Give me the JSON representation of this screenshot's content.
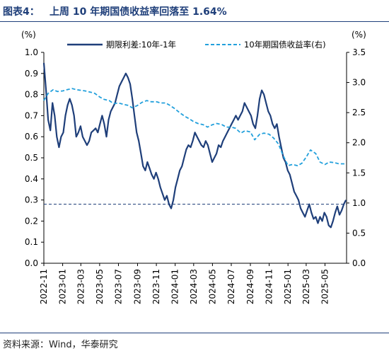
{
  "title": {
    "label": "图表4：",
    "text": "上周 10 年期国债收益率回落至 1.64%"
  },
  "source": "资料来源：Wind，华泰研究",
  "colors": {
    "spread": "#1f3f7a",
    "yield": "#22a0dc",
    "ref": "#1f3f7a",
    "accent": "#1f3f7a"
  },
  "chart_data": {
    "type": "line",
    "title": "上周 10 年期国债收益率回落至 1.64%",
    "y_left": {
      "unit": "(%)",
      "range": [
        0.0,
        1.0
      ],
      "ticks": [
        "1.0",
        "0.9",
        "0.8",
        "0.7",
        "0.6",
        "0.5",
        "0.4",
        "0.3",
        "0.2",
        "0.1",
        "0.0"
      ]
    },
    "y_right": {
      "unit": "(%)",
      "range": [
        0.0,
        3.5
      ],
      "ticks": [
        "3.5",
        "3.0",
        "2.5",
        "2.0",
        "1.5",
        "1.0",
        "0.5",
        "0.0"
      ]
    },
    "x_ticks": [
      "2022-11",
      "2023-01",
      "2023-03",
      "2023-05",
      "2023-07",
      "2023-09",
      "2023-11",
      "2024-01",
      "2024-03",
      "2024-05",
      "2024-07",
      "2024-09",
      "2024-11",
      "2025-01",
      "2025-03",
      "2025-05"
    ],
    "x_range": [
      "2022-11-01",
      "2025-07-10"
    ],
    "legend": [
      "期限利差:10年-1年",
      "10年期国债收益率(右)"
    ],
    "reference_line": {
      "axis": "left",
      "value": 0.28,
      "style": "dashed"
    },
    "series": [
      {
        "name": "期限利差:10年-1年",
        "axis": "left",
        "color": "#1f3f7a",
        "style": "solid",
        "points": [
          [
            "2022-11-01",
            0.95
          ],
          [
            "2022-11-08",
            0.82
          ],
          [
            "2022-11-15",
            0.68
          ],
          [
            "2022-11-22",
            0.63
          ],
          [
            "2022-11-29",
            0.76
          ],
          [
            "2022-12-06",
            0.7
          ],
          [
            "2022-12-13",
            0.6
          ],
          [
            "2022-12-20",
            0.55
          ],
          [
            "2022-12-27",
            0.6
          ],
          [
            "2023-01-03",
            0.62
          ],
          [
            "2023-01-10",
            0.7
          ],
          [
            "2023-01-17",
            0.75
          ],
          [
            "2023-01-24",
            0.78
          ],
          [
            "2023-01-31",
            0.75
          ],
          [
            "2023-02-07",
            0.7
          ],
          [
            "2023-02-14",
            0.6
          ],
          [
            "2023-02-21",
            0.62
          ],
          [
            "2023-02-28",
            0.65
          ],
          [
            "2023-03-07",
            0.6
          ],
          [
            "2023-03-14",
            0.58
          ],
          [
            "2023-03-21",
            0.56
          ],
          [
            "2023-03-28",
            0.58
          ],
          [
            "2023-04-04",
            0.62
          ],
          [
            "2023-04-11",
            0.63
          ],
          [
            "2023-04-18",
            0.64
          ],
          [
            "2023-04-25",
            0.62
          ],
          [
            "2023-05-02",
            0.66
          ],
          [
            "2023-05-09",
            0.7
          ],
          [
            "2023-05-16",
            0.66
          ],
          [
            "2023-05-23",
            0.6
          ],
          [
            "2023-05-30",
            0.68
          ],
          [
            "2023-06-06",
            0.72
          ],
          [
            "2023-06-13",
            0.74
          ],
          [
            "2023-06-20",
            0.76
          ],
          [
            "2023-06-27",
            0.8
          ],
          [
            "2023-07-04",
            0.84
          ],
          [
            "2023-07-11",
            0.86
          ],
          [
            "2023-07-18",
            0.88
          ],
          [
            "2023-07-25",
            0.9
          ],
          [
            "2023-08-01",
            0.88
          ],
          [
            "2023-08-08",
            0.85
          ],
          [
            "2023-08-15",
            0.78
          ],
          [
            "2023-08-22",
            0.7
          ],
          [
            "2023-08-29",
            0.62
          ],
          [
            "2023-09-05",
            0.58
          ],
          [
            "2023-09-12",
            0.52
          ],
          [
            "2023-09-19",
            0.46
          ],
          [
            "2023-09-26",
            0.44
          ],
          [
            "2023-10-03",
            0.48
          ],
          [
            "2023-10-10",
            0.45
          ],
          [
            "2023-10-17",
            0.42
          ],
          [
            "2023-10-24",
            0.4
          ],
          [
            "2023-10-31",
            0.43
          ],
          [
            "2023-11-07",
            0.4
          ],
          [
            "2023-11-14",
            0.36
          ],
          [
            "2023-11-21",
            0.33
          ],
          [
            "2023-11-28",
            0.3
          ],
          [
            "2023-12-05",
            0.32
          ],
          [
            "2023-12-12",
            0.28
          ],
          [
            "2023-12-19",
            0.26
          ],
          [
            "2023-12-26",
            0.3
          ],
          [
            "2024-01-02",
            0.36
          ],
          [
            "2024-01-09",
            0.4
          ],
          [
            "2024-01-16",
            0.44
          ],
          [
            "2024-01-23",
            0.46
          ],
          [
            "2024-01-30",
            0.5
          ],
          [
            "2024-02-06",
            0.54
          ],
          [
            "2024-02-13",
            0.56
          ],
          [
            "2024-02-20",
            0.55
          ],
          [
            "2024-02-27",
            0.58
          ],
          [
            "2024-03-05",
            0.62
          ],
          [
            "2024-03-12",
            0.6
          ],
          [
            "2024-03-19",
            0.58
          ],
          [
            "2024-03-26",
            0.56
          ],
          [
            "2024-04-02",
            0.55
          ],
          [
            "2024-04-09",
            0.58
          ],
          [
            "2024-04-16",
            0.56
          ],
          [
            "2024-04-23",
            0.52
          ],
          [
            "2024-04-30",
            0.48
          ],
          [
            "2024-05-07",
            0.5
          ],
          [
            "2024-05-14",
            0.52
          ],
          [
            "2024-05-21",
            0.56
          ],
          [
            "2024-05-28",
            0.55
          ],
          [
            "2024-06-04",
            0.58
          ],
          [
            "2024-06-11",
            0.6
          ],
          [
            "2024-06-18",
            0.62
          ],
          [
            "2024-06-25",
            0.64
          ],
          [
            "2024-07-02",
            0.66
          ],
          [
            "2024-07-09",
            0.68
          ],
          [
            "2024-07-16",
            0.7
          ],
          [
            "2024-07-23",
            0.68
          ],
          [
            "2024-07-30",
            0.7
          ],
          [
            "2024-08-06",
            0.72
          ],
          [
            "2024-08-13",
            0.76
          ],
          [
            "2024-08-20",
            0.74
          ],
          [
            "2024-08-27",
            0.72
          ],
          [
            "2024-09-03",
            0.7
          ],
          [
            "2024-09-10",
            0.66
          ],
          [
            "2024-09-17",
            0.64
          ],
          [
            "2024-09-24",
            0.7
          ],
          [
            "2024-10-01",
            0.78
          ],
          [
            "2024-10-08",
            0.82
          ],
          [
            "2024-10-15",
            0.8
          ],
          [
            "2024-10-22",
            0.76
          ],
          [
            "2024-10-29",
            0.72
          ],
          [
            "2024-11-05",
            0.7
          ],
          [
            "2024-11-12",
            0.66
          ],
          [
            "2024-11-19",
            0.64
          ],
          [
            "2024-11-26",
            0.66
          ],
          [
            "2024-12-03",
            0.6
          ],
          [
            "2024-12-10",
            0.55
          ],
          [
            "2024-12-17",
            0.5
          ],
          [
            "2024-12-24",
            0.48
          ],
          [
            "2024-12-31",
            0.44
          ],
          [
            "2025-01-07",
            0.42
          ],
          [
            "2025-01-14",
            0.38
          ],
          [
            "2025-01-21",
            0.34
          ],
          [
            "2025-01-28",
            0.32
          ],
          [
            "2025-02-04",
            0.3
          ],
          [
            "2025-02-11",
            0.26
          ],
          [
            "2025-02-18",
            0.24
          ],
          [
            "2025-02-25",
            0.22
          ],
          [
            "2025-03-04",
            0.25
          ],
          [
            "2025-03-11",
            0.28
          ],
          [
            "2025-03-18",
            0.24
          ],
          [
            "2025-03-25",
            0.21
          ],
          [
            "2025-04-01",
            0.22
          ],
          [
            "2025-04-08",
            0.19
          ],
          [
            "2025-04-15",
            0.22
          ],
          [
            "2025-04-22",
            0.2
          ],
          [
            "2025-04-29",
            0.24
          ],
          [
            "2025-05-06",
            0.22
          ],
          [
            "2025-05-13",
            0.18
          ],
          [
            "2025-05-20",
            0.17
          ],
          [
            "2025-05-27",
            0.2
          ],
          [
            "2025-06-03",
            0.24
          ],
          [
            "2025-06-10",
            0.27
          ],
          [
            "2025-06-17",
            0.23
          ],
          [
            "2025-06-24",
            0.25
          ],
          [
            "2025-07-01",
            0.28
          ],
          [
            "2025-07-08",
            0.3
          ]
        ]
      },
      {
        "name": "10年期国债收益率(右)",
        "axis": "right",
        "color": "#22a0dc",
        "style": "dashed",
        "points": [
          [
            "2022-11-01",
            2.7
          ],
          [
            "2022-11-15",
            2.82
          ],
          [
            "2022-12-01",
            2.88
          ],
          [
            "2022-12-15",
            2.85
          ],
          [
            "2023-01-01",
            2.86
          ],
          [
            "2023-01-15",
            2.88
          ],
          [
            "2023-02-01",
            2.9
          ],
          [
            "2023-02-15",
            2.88
          ],
          [
            "2023-03-01",
            2.87
          ],
          [
            "2023-03-15",
            2.86
          ],
          [
            "2023-04-01",
            2.84
          ],
          [
            "2023-04-15",
            2.82
          ],
          [
            "2023-05-01",
            2.76
          ],
          [
            "2023-05-15",
            2.72
          ],
          [
            "2023-06-01",
            2.7
          ],
          [
            "2023-06-15",
            2.65
          ],
          [
            "2023-07-01",
            2.66
          ],
          [
            "2023-07-15",
            2.64
          ],
          [
            "2023-08-01",
            2.62
          ],
          [
            "2023-08-15",
            2.58
          ],
          [
            "2023-09-01",
            2.62
          ],
          [
            "2023-09-15",
            2.67
          ],
          [
            "2023-10-01",
            2.7
          ],
          [
            "2023-10-15",
            2.68
          ],
          [
            "2023-11-01",
            2.68
          ],
          [
            "2023-11-15",
            2.66
          ],
          [
            "2023-12-01",
            2.66
          ],
          [
            "2023-12-15",
            2.62
          ],
          [
            "2024-01-01",
            2.56
          ],
          [
            "2024-01-15",
            2.5
          ],
          [
            "2024-02-01",
            2.44
          ],
          [
            "2024-02-15",
            2.4
          ],
          [
            "2024-03-01",
            2.35
          ],
          [
            "2024-03-15",
            2.32
          ],
          [
            "2024-04-01",
            2.3
          ],
          [
            "2024-04-15",
            2.26
          ],
          [
            "2024-05-01",
            2.3
          ],
          [
            "2024-05-15",
            2.32
          ],
          [
            "2024-06-01",
            2.3
          ],
          [
            "2024-06-15",
            2.26
          ],
          [
            "2024-07-01",
            2.26
          ],
          [
            "2024-07-15",
            2.24
          ],
          [
            "2024-08-01",
            2.16
          ],
          [
            "2024-08-15",
            2.2
          ],
          [
            "2024-09-01",
            2.18
          ],
          [
            "2024-09-15",
            2.05
          ],
          [
            "2024-10-01",
            2.14
          ],
          [
            "2024-10-15",
            2.16
          ],
          [
            "2024-11-01",
            2.14
          ],
          [
            "2024-11-15",
            2.08
          ],
          [
            "2024-12-01",
            1.98
          ],
          [
            "2024-12-15",
            1.8
          ],
          [
            "2025-01-01",
            1.62
          ],
          [
            "2025-01-15",
            1.64
          ],
          [
            "2025-02-01",
            1.62
          ],
          [
            "2025-02-15",
            1.66
          ],
          [
            "2025-03-01",
            1.76
          ],
          [
            "2025-03-15",
            1.88
          ],
          [
            "2025-04-01",
            1.82
          ],
          [
            "2025-04-15",
            1.68
          ],
          [
            "2025-05-01",
            1.64
          ],
          [
            "2025-05-15",
            1.68
          ],
          [
            "2025-06-01",
            1.67
          ],
          [
            "2025-06-15",
            1.65
          ],
          [
            "2025-07-01",
            1.65
          ],
          [
            "2025-07-08",
            1.64
          ]
        ]
      }
    ]
  }
}
